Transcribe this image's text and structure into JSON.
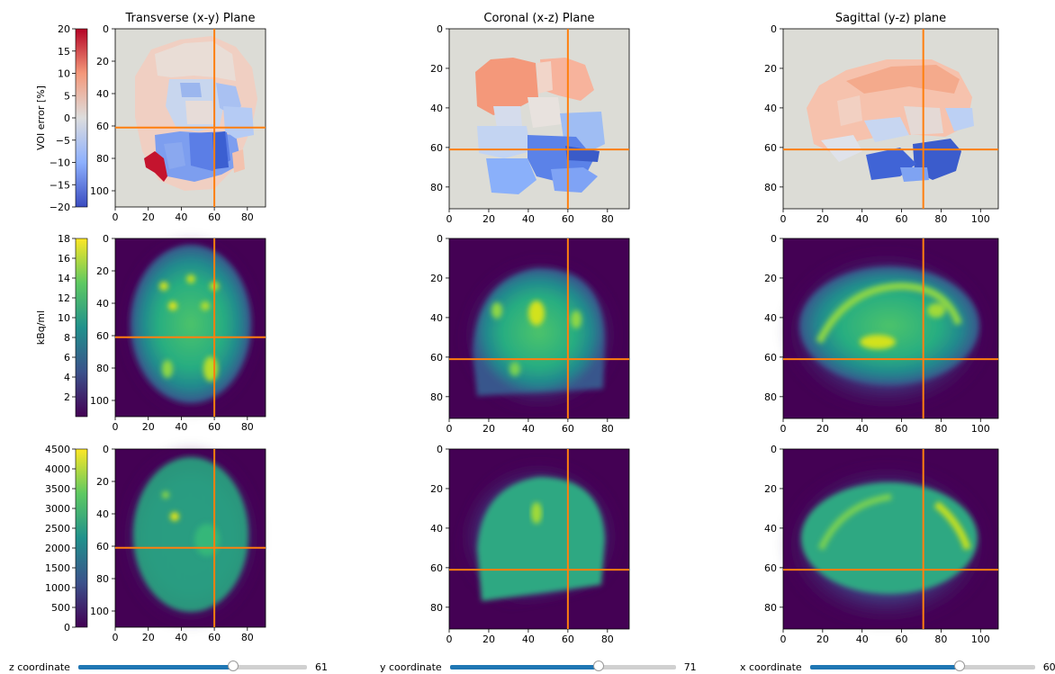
{
  "colors": {
    "crosshair": "#ff7f0e",
    "voi_background": "#dcdcd6",
    "voi_colormap": "coolwarm",
    "intensity_colormap": "viridis",
    "slider_fill": "#1f77b4",
    "slider_track": "#d0d0d0"
  },
  "chart_data": [
    {
      "type": "heatmap",
      "title": "Transverse (x-y) Plane",
      "row": "voi_error",
      "xlim": [
        0,
        91
      ],
      "ylim": [
        110,
        0
      ],
      "xticks": [
        "0",
        "20",
        "40",
        "60",
        "80"
      ],
      "yticks": [
        "0",
        "20",
        "40",
        "60",
        "80",
        "100"
      ],
      "crosshair": {
        "x": 60,
        "y": 61
      },
      "colorbar": {
        "label": "VOI error [%]",
        "range": [
          -20,
          20
        ],
        "ticks": [
          "20",
          "15",
          "10",
          "5",
          "0",
          "−5",
          "−10",
          "−15",
          "−20"
        ],
        "colormap": "coolwarm"
      }
    },
    {
      "type": "heatmap",
      "title": "Coronal (x-z) Plane",
      "row": "voi_error",
      "xlim": [
        0,
        91
      ],
      "ylim": [
        91,
        0
      ],
      "xticks": [
        "0",
        "20",
        "40",
        "60",
        "80"
      ],
      "yticks": [
        "0",
        "20",
        "40",
        "60",
        "80"
      ],
      "crosshair": {
        "x": 60,
        "y": 61
      }
    },
    {
      "type": "heatmap",
      "title": "Sagittal (y-z) plane",
      "row": "voi_error",
      "xlim": [
        0,
        109
      ],
      "ylim": [
        91,
        0
      ],
      "xticks": [
        "0",
        "20",
        "40",
        "60",
        "80",
        "100"
      ],
      "yticks": [
        "0",
        "20",
        "40",
        "60",
        "80"
      ],
      "crosshair": {
        "x": 71,
        "y": 61
      }
    },
    {
      "type": "heatmap",
      "title": "",
      "row": "activity_kBq",
      "xlim": [
        0,
        91
      ],
      "ylim": [
        110,
        0
      ],
      "xticks": [
        "0",
        "20",
        "40",
        "60",
        "80"
      ],
      "yticks": [
        "0",
        "20",
        "40",
        "60",
        "80",
        "100"
      ],
      "crosshair": {
        "x": 60,
        "y": 61
      },
      "colorbar": {
        "label": "kBq/ml",
        "range": [
          0,
          18
        ],
        "ticks": [
          "18",
          "16",
          "14",
          "12",
          "10",
          "8",
          "6",
          "4",
          "2"
        ],
        "colormap": "viridis"
      }
    },
    {
      "type": "heatmap",
      "title": "",
      "row": "activity_kBq",
      "xlim": [
        0,
        91
      ],
      "ylim": [
        91,
        0
      ],
      "xticks": [
        "0",
        "20",
        "40",
        "60",
        "80"
      ],
      "yticks": [
        "0",
        "20",
        "40",
        "60",
        "80"
      ],
      "crosshair": {
        "x": 60,
        "y": 61
      }
    },
    {
      "type": "heatmap",
      "title": "",
      "row": "activity_kBq",
      "xlim": [
        0,
        109
      ],
      "ylim": [
        91,
        0
      ],
      "xticks": [
        "0",
        "20",
        "40",
        "60",
        "80",
        "100"
      ],
      "yticks": [
        "0",
        "20",
        "40",
        "60",
        "80"
      ],
      "crosshair": {
        "x": 71,
        "y": 61
      }
    },
    {
      "type": "heatmap",
      "title": "",
      "row": "counts",
      "xlim": [
        0,
        91
      ],
      "ylim": [
        110,
        0
      ],
      "xticks": [
        "0",
        "20",
        "40",
        "60",
        "80"
      ],
      "yticks": [
        "0",
        "20",
        "40",
        "60",
        "80",
        "100"
      ],
      "crosshair": {
        "x": 60,
        "y": 61
      },
      "colorbar": {
        "label": "",
        "range": [
          0,
          4500
        ],
        "ticks": [
          "4500",
          "4000",
          "3500",
          "3000",
          "2500",
          "2000",
          "1500",
          "1000",
          "500",
          "0"
        ],
        "colormap": "viridis"
      }
    },
    {
      "type": "heatmap",
      "title": "",
      "row": "counts",
      "xlim": [
        0,
        91
      ],
      "ylim": [
        91,
        0
      ],
      "xticks": [
        "0",
        "20",
        "40",
        "60",
        "80"
      ],
      "yticks": [
        "0",
        "20",
        "40",
        "60",
        "80"
      ],
      "crosshair": {
        "x": 60,
        "y": 61
      }
    },
    {
      "type": "heatmap",
      "title": "",
      "row": "counts",
      "xlim": [
        0,
        109
      ],
      "ylim": [
        91,
        0
      ],
      "xticks": [
        "0",
        "20",
        "40",
        "60",
        "80",
        "100"
      ],
      "yticks": [
        "0",
        "20",
        "40",
        "60",
        "80"
      ],
      "crosshair": {
        "x": 71,
        "y": 61
      }
    }
  ],
  "sliders": [
    {
      "label": "z coordinate",
      "value": 61,
      "display": "61",
      "min": 0,
      "max": 90
    },
    {
      "label": "y coordinate",
      "value": 71,
      "display": "71",
      "min": 0,
      "max": 108
    },
    {
      "label": "x coordinate",
      "value": 60,
      "display": "60",
      "min": 0,
      "max": 90
    }
  ]
}
